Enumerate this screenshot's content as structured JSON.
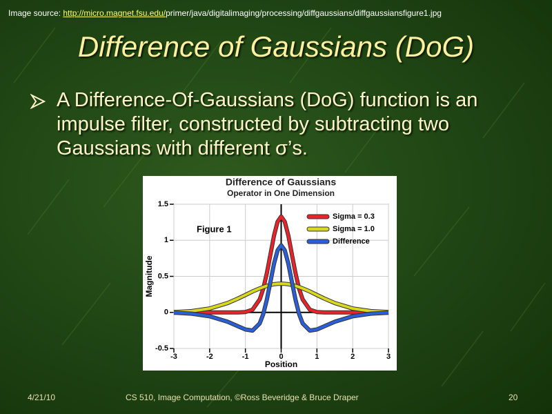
{
  "source": {
    "label": "Image source: ",
    "link": "http://micro.magnet.fsu.edu/",
    "path": "primer/java/digitalimaging/processing/diffgaussians/diffgaussiansfigure1.jpg"
  },
  "title": "Difference of Gaussians (DoG)",
  "bullet": "A Difference-Of-Gaussians (DoG) function is an impulse filter, constructed by subtracting two Gaussians with different σ’s.",
  "figure": {
    "type": "line",
    "title": "Difference of Gaussians",
    "subtitle": "Operator in One Dimension",
    "annotation": "Figure 1",
    "xlabel": "Position",
    "ylabel": "Magnitude",
    "xlim": [
      -3,
      3
    ],
    "ylim": [
      -0.5,
      1.5
    ],
    "xticks": [
      -3,
      -2,
      -1,
      0,
      1,
      2,
      3
    ],
    "yticks": [
      -0.5,
      0,
      0.5,
      1,
      1.5
    ],
    "grid": true,
    "legend": "upper right",
    "x": [
      -3,
      -2.5,
      -2,
      -1.5,
      -1.2,
      -1,
      -0.8,
      -0.6,
      -0.5,
      -0.4,
      -0.3,
      -0.2,
      -0.1,
      0,
      0.1,
      0.2,
      0.3,
      0.4,
      0.5,
      0.6,
      0.8,
      1,
      1.2,
      1.5,
      2,
      2.5,
      3
    ],
    "series": [
      {
        "name": "Sigma = 0.3",
        "color": "#e8232a",
        "values": [
          0,
          0,
          0,
          0,
          0,
          0.005,
          0.038,
          0.18,
          0.331,
          0.547,
          0.807,
          1.065,
          1.258,
          1.33,
          1.258,
          1.065,
          0.807,
          0.547,
          0.331,
          0.18,
          0.038,
          0.005,
          0,
          0,
          0,
          0,
          0
        ]
      },
      {
        "name": "Sigma = 1.0",
        "color": "#d8d820",
        "values": [
          0.004,
          0.018,
          0.054,
          0.13,
          0.194,
          0.242,
          0.29,
          0.333,
          0.352,
          0.368,
          0.381,
          0.391,
          0.397,
          0.399,
          0.397,
          0.391,
          0.381,
          0.368,
          0.352,
          0.333,
          0.29,
          0.242,
          0.194,
          0.13,
          0.054,
          0.018,
          0.004
        ]
      },
      {
        "name": "Difference",
        "color": "#2b5fd8",
        "values": [
          -0.004,
          -0.018,
          -0.054,
          -0.13,
          -0.194,
          -0.237,
          -0.252,
          -0.153,
          -0.021,
          0.179,
          0.426,
          0.674,
          0.861,
          0.931,
          0.861,
          0.674,
          0.426,
          0.179,
          -0.021,
          -0.153,
          -0.252,
          -0.237,
          -0.194,
          -0.13,
          -0.054,
          -0.018,
          -0.004
        ]
      }
    ]
  },
  "footer": {
    "date": "4/21/10",
    "course": "CS 510, Image Computation, ©Ross Beveridge & Bruce Draper",
    "page": 20
  }
}
